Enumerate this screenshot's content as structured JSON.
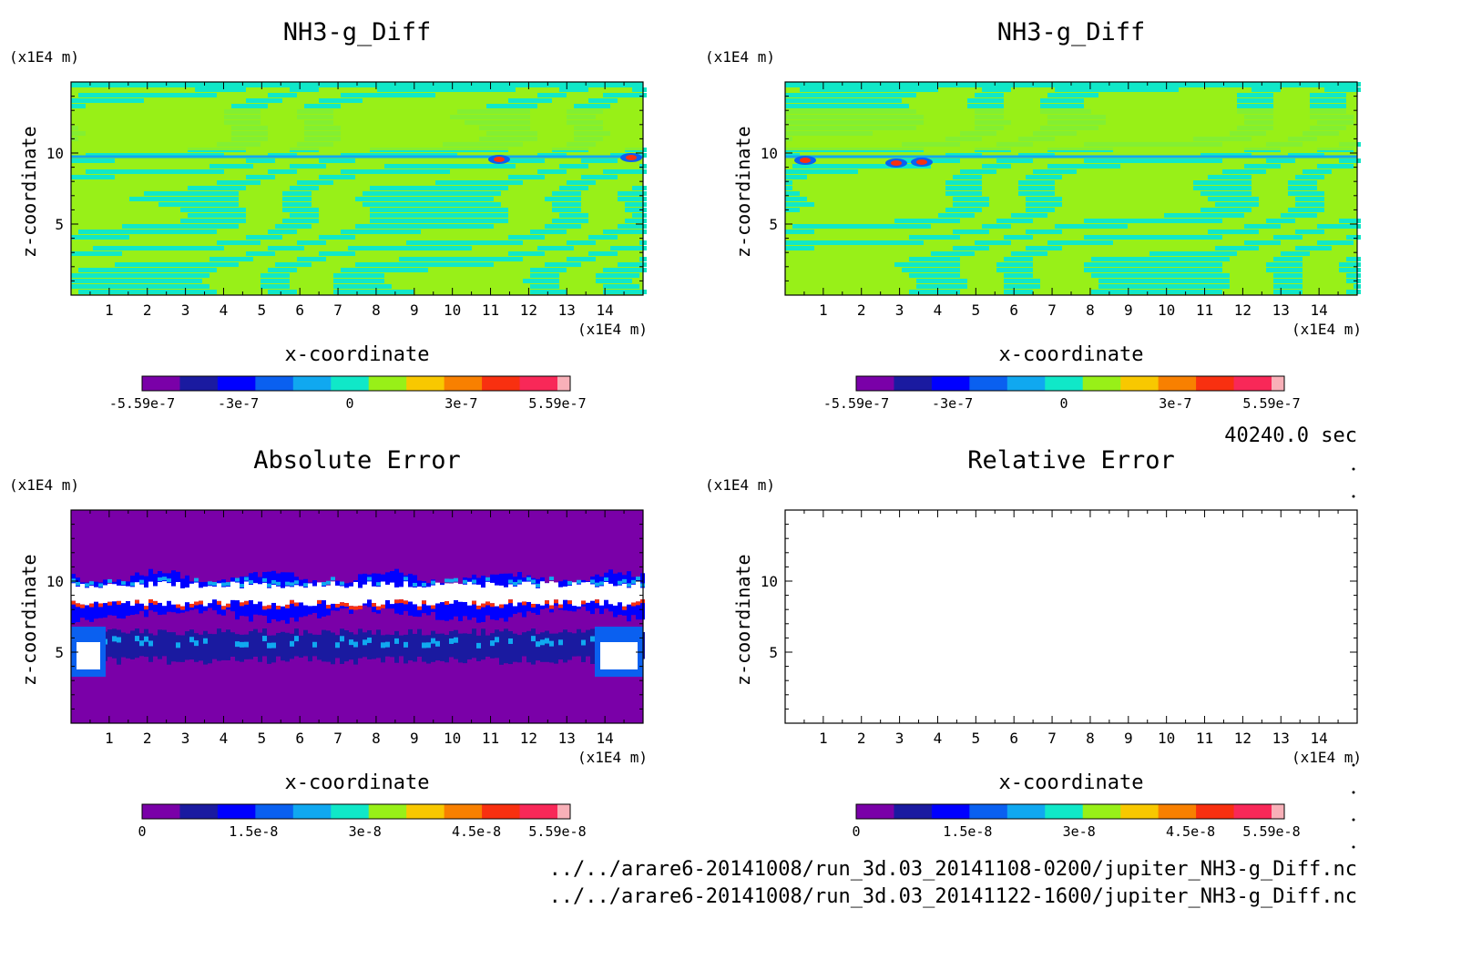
{
  "chart_data": [
    {
      "type": "heatmap",
      "title": "NH3-g_Diff",
      "xlabel": "x-coordinate",
      "ylabel": "z-coordinate",
      "x_unit": "(x1E4 m)",
      "y_unit": "(x1E4 m)",
      "xlim": [
        0,
        15
      ],
      "ylim": [
        0,
        15
      ],
      "x_ticks": [
        "1",
        "2",
        "3",
        "4",
        "5",
        "6",
        "7",
        "8",
        "9",
        "10",
        "11",
        "12",
        "13",
        "14"
      ],
      "y_ticks": [
        "5",
        "10"
      ],
      "colorbar": {
        "min": -5.59e-07,
        "max": 5.59e-07,
        "labels": [
          "-5.59e-7",
          "-3e-7",
          "0",
          "3e-7",
          "5.59e-7"
        ]
      }
    },
    {
      "type": "heatmap",
      "title": "NH3-g_Diff",
      "xlabel": "x-coordinate",
      "ylabel": "z-coordinate",
      "x_unit": "(x1E4 m)",
      "y_unit": "(x1E4 m)",
      "xlim": [
        0,
        15
      ],
      "ylim": [
        0,
        15
      ],
      "x_ticks": [
        "1",
        "2",
        "3",
        "4",
        "5",
        "6",
        "7",
        "8",
        "9",
        "10",
        "11",
        "12",
        "13",
        "14"
      ],
      "y_ticks": [
        "5",
        "10"
      ],
      "colorbar": {
        "min": -5.59e-07,
        "max": 5.59e-07,
        "labels": [
          "-5.59e-7",
          "-3e-7",
          "0",
          "3e-7",
          "5.59e-7"
        ]
      }
    },
    {
      "type": "heatmap",
      "title": "Absolute Error",
      "xlabel": "x-coordinate",
      "ylabel": "z-coordinate",
      "x_unit": "(x1E4 m)",
      "y_unit": "(x1E4 m)",
      "xlim": [
        0,
        15
      ],
      "ylim": [
        0,
        15
      ],
      "x_ticks": [
        "1",
        "2",
        "3",
        "4",
        "5",
        "6",
        "7",
        "8",
        "9",
        "10",
        "11",
        "12",
        "13",
        "14"
      ],
      "y_ticks": [
        "5",
        "10"
      ],
      "colorbar": {
        "min": 0,
        "max": 5.59e-08,
        "labels": [
          "0",
          "1.5e-8",
          "3e-8",
          "4.5e-8",
          "5.59e-8"
        ]
      }
    },
    {
      "type": "heatmap",
      "title": "Relative Error",
      "xlabel": "x-coordinate",
      "ylabel": "z-coordinate",
      "x_unit": "(x1E4 m)",
      "y_unit": "(x1E4 m)",
      "xlim": [
        0,
        15
      ],
      "ylim": [
        0,
        15
      ],
      "x_ticks": [
        "1",
        "2",
        "3",
        "4",
        "5",
        "6",
        "7",
        "8",
        "9",
        "10",
        "11",
        "12",
        "13",
        "14"
      ],
      "y_ticks": [
        "5",
        "10"
      ],
      "colorbar": {
        "min": 0,
        "max": 5.59e-08,
        "labels": [
          "0",
          "1.5e-8",
          "3e-8",
          "4.5e-8",
          "5.59e-8"
        ]
      }
    }
  ],
  "time_label": "40240.0 sec",
  "files": [
    "../../arare6-20141008/run_3d.03_20141108-0200/jupiter_NH3-g_Diff.nc",
    "../../arare6-20141008/run_3d.03_20141122-1600/jupiter_NH3-g_Diff.nc"
  ],
  "colors": {
    "diff_scale": [
      "#7a00a8",
      "#1a1aa0",
      "#0000ff",
      "#0a60f0",
      "#10a8f0",
      "#10e8c8",
      "#98f018",
      "#f8c800",
      "#f88000",
      "#f83010",
      "#f82858",
      "#f8b0b8"
    ],
    "err_scale": [
      "#7a00a8",
      "#1a1aa0",
      "#0000ff",
      "#0a60f0",
      "#10a8f0",
      "#10e8c8",
      "#98f018",
      "#f8c800",
      "#f88000",
      "#f83010",
      "#f82858",
      "#f8b0b8"
    ]
  }
}
